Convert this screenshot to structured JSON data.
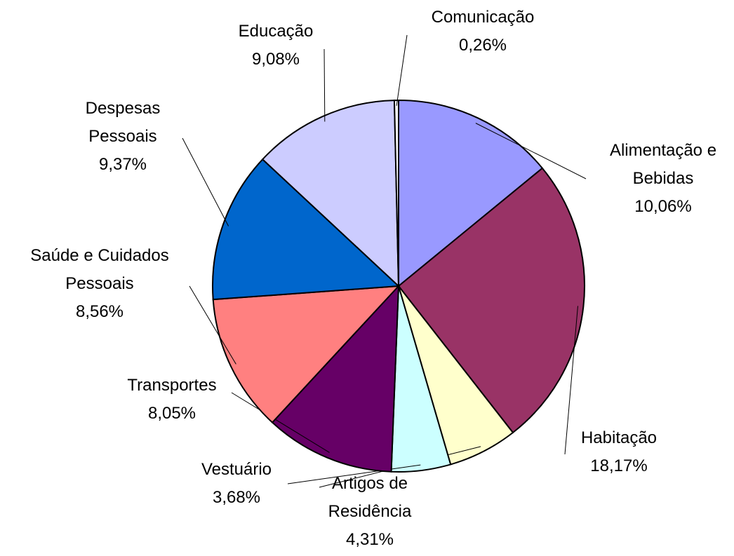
{
  "chart_data": {
    "type": "pie",
    "categories": [
      "Alimentação e Bebidas",
      "Habitação",
      "Artigos de Residência",
      "Vestuário",
      "Transportes",
      "Saúde e Cuidados Pessoais",
      "Despesas Pessoais",
      "Educação",
      "Comunicação"
    ],
    "values": [
      10.06,
      18.17,
      4.31,
      3.68,
      8.05,
      8.56,
      9.37,
      9.08,
      0.26
    ],
    "value_labels": [
      "10,06%",
      "18,17%",
      "4,31%",
      "3,68%",
      "8,05%",
      "8,56%",
      "9,37%",
      "9,08%",
      "0,26%"
    ],
    "colors": [
      "#9999ff",
      "#993366",
      "#ffffcc",
      "#ccffff",
      "#660066",
      "#ff8080",
      "#0066cc",
      "#ccccff",
      "#ffffff"
    ]
  }
}
